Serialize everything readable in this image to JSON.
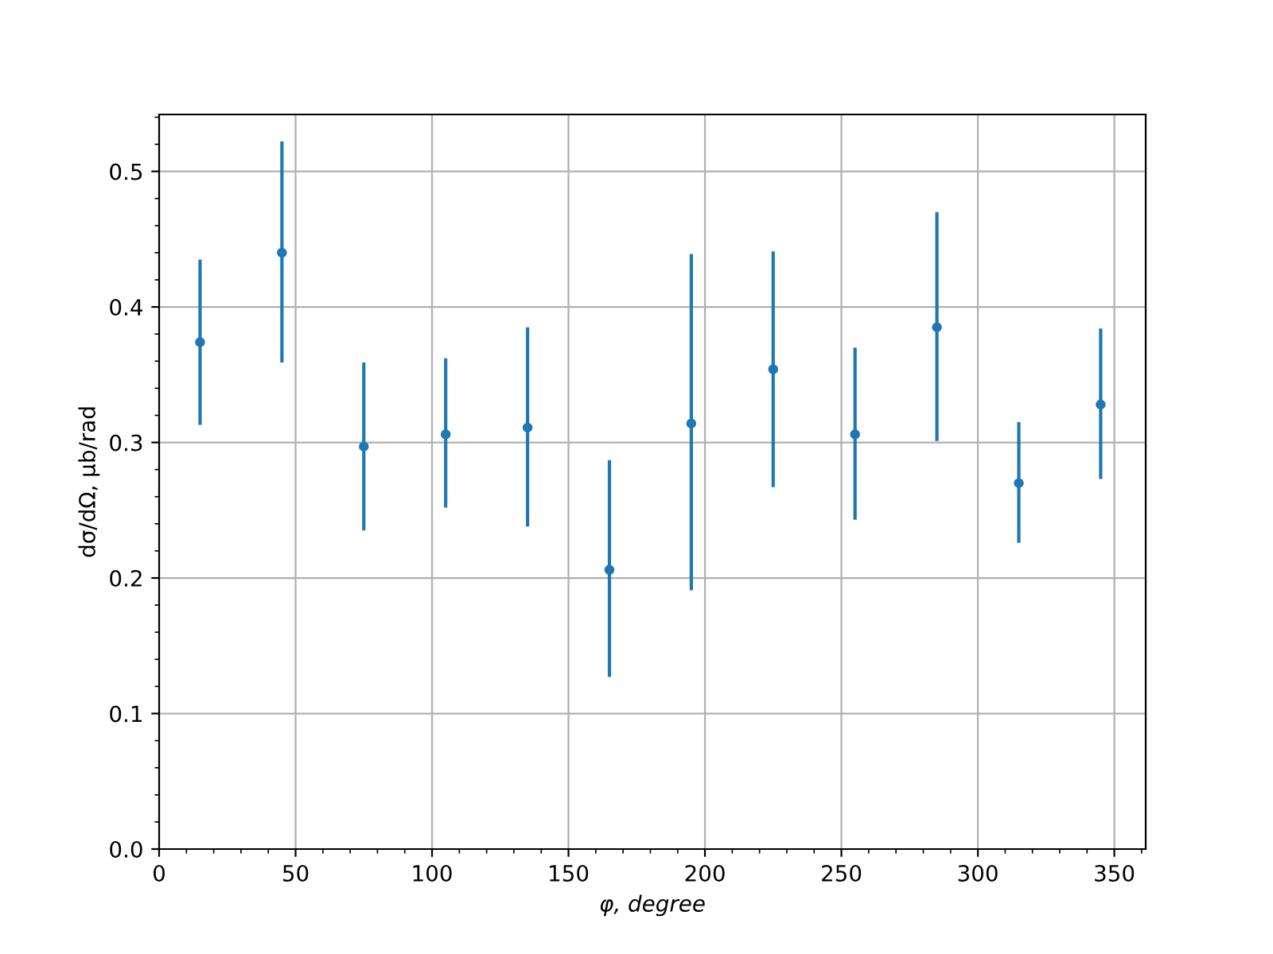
{
  "chart_data": {
    "type": "scatter",
    "xlabel": "φ, degree",
    "ylabel": "dσ/dΩ, μb/rad",
    "x": [
      15,
      45,
      75,
      105,
      135,
      165,
      195,
      225,
      255,
      285,
      315,
      345
    ],
    "series": [
      {
        "color": "#1f77b4",
        "values": [
          0.374,
          0.44,
          0.297,
          0.306,
          0.311,
          0.206,
          0.314,
          0.354,
          0.306,
          0.385,
          0.27,
          0.328
        ],
        "errors": [
          [
            0.313,
            0.435
          ],
          [
            0.359,
            0.522
          ],
          [
            0.235,
            0.359
          ],
          [
            0.252,
            0.362
          ],
          [
            0.238,
            0.385
          ],
          [
            0.127,
            0.287
          ],
          [
            0.191,
            0.439
          ],
          [
            0.267,
            0.441
          ],
          [
            0.243,
            0.37
          ],
          [
            0.301,
            0.47
          ],
          [
            0.226,
            0.315
          ],
          [
            0.273,
            0.384
          ]
        ]
      }
    ],
    "xlim": [
      0,
      361.5
    ],
    "ylim": [
      0,
      0.542
    ],
    "xticks": [
      0,
      50,
      100,
      150,
      200,
      250,
      300,
      350
    ],
    "yticks": [
      {
        "value": 0,
        "label": "0.0"
      },
      0.1,
      0.2,
      0.3,
      0.4,
      0.5
    ],
    "grid": true,
    "marker": "circle"
  }
}
